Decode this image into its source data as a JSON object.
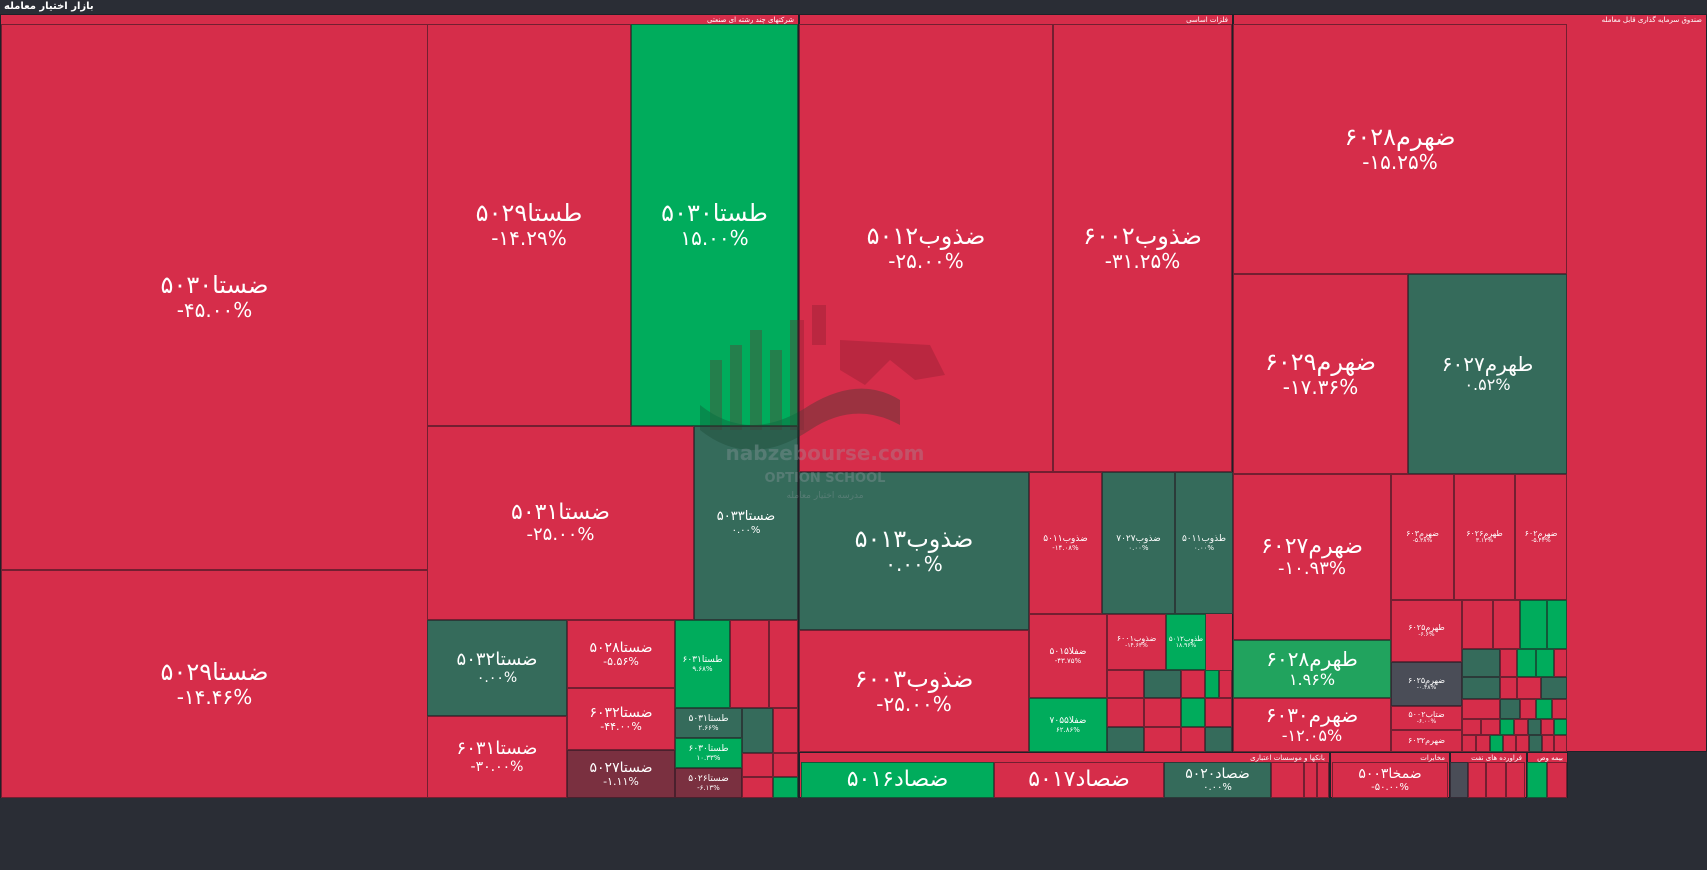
{
  "app": {
    "title": "بازار اختیار معامله"
  },
  "colors": {
    "red": "#d62d4a",
    "dark_red": "#7a3040",
    "dark_green": "#356b5b",
    "green": "#00ac5c",
    "mid_green": "#21a35e",
    "neutral": "#4a4d57",
    "background": "#2a2d35"
  },
  "watermark": {
    "logo": "nabzebourse-logo-icon",
    "site": "nabzebourse.com",
    "school": "OPTION SCHOOL",
    "tagline": "مدرسه اختیار معامله"
  },
  "chart_data": {
    "type": "treemap",
    "title": "بازار اختیار معامله",
    "value_unit": "%",
    "sectors": [
      {
        "name": "شرکتهای چند رشته ای صنعتی",
        "items": [
          {
            "symbol": "ضستا۵۰۳۰",
            "change": "-۴۵.۰۰%",
            "value": -45.0
          },
          {
            "symbol": "ضستا۵۰۲۹",
            "change": "-۱۴.۴۶%",
            "value": -14.46
          },
          {
            "symbol": "طستا۵۰۲۹",
            "change": "-۱۴.۲۹%",
            "value": -14.29
          },
          {
            "symbol": "طستا۵۰۳۰",
            "change": "۱۵.۰۰%",
            "value": 15.0
          },
          {
            "symbol": "ضستا۵۰۳۱",
            "change": "-۲۵.۰۰%",
            "value": -25.0
          },
          {
            "symbol": "ضستا۵۰۳۳",
            "change": "۰.۰۰%",
            "value": 0.0
          },
          {
            "symbol": "ضستا۵۰۳۲",
            "change": "۰.۰۰%",
            "value": 0.0
          },
          {
            "symbol": "ضستا۶۰۳۱",
            "change": "-۳۰.۰۰%",
            "value": -30.0
          },
          {
            "symbol": "ضستا۵۰۲۸",
            "change": "-۵.۵۶%",
            "value": -5.56
          },
          {
            "symbol": "ضستا۶۰۳۲",
            "change": "-۴۴.۰۰%",
            "value": -44.0
          },
          {
            "symbol": "ضستا۵۰۲۷",
            "change": "-۱.۱۱%",
            "value": -1.11
          },
          {
            "symbol": "طستا۶۰۳۱",
            "change": "۹.۶۸%",
            "value": 9.68
          },
          {
            "symbol": "طستا۵۰۳۱",
            "change": "۲.۶۶%",
            "value": 2.66
          },
          {
            "symbol": "طستا۶۰۳۰",
            "change": "۱۰.۳۳%",
            "value": 10.33
          },
          {
            "symbol": "ضستا۵۰۲۶",
            "change": "-۶.۱۳%",
            "value": -6.13
          }
        ]
      },
      {
        "name": "فلزات اساسی",
        "items": [
          {
            "symbol": "ضذوب۵۰۱۲",
            "change": "-۲۵.۰۰%",
            "value": -25.0
          },
          {
            "symbol": "ضذوب۶۰۰۲",
            "change": "-۳۱.۲۵%",
            "value": -31.25
          },
          {
            "symbol": "ضذوب۵۰۱۳",
            "change": "۰.۰۰%",
            "value": 0.0
          },
          {
            "symbol": "ضذوب۶۰۰۳",
            "change": "-۲۵.۰۰%",
            "value": -25.0
          },
          {
            "symbol": "ضذوب۵۰۱۱",
            "change": "-۱۴.۰۸%",
            "value": -14.08
          },
          {
            "symbol": "ضذوب۷۰۲۷",
            "change": "۰.۰۰%",
            "value": 0.0
          },
          {
            "symbol": "طذوب۵۰۱۱",
            "change": "۰.۰۰%",
            "value": 0.0
          },
          {
            "symbol": "ضفلا۵۰۱۵",
            "change": "-۴۳.۷۵%",
            "value": -43.75
          },
          {
            "symbol": "ضذوب۶۰۰۱",
            "change": "-۱۴.۶۳%",
            "value": -14.63
          },
          {
            "symbol": "طذوب۵۰۱۲",
            "change": "۱۸.۹۶%",
            "value": 18.96
          },
          {
            "symbol": "ضفلا۷۰۵۵",
            "change": "۶۲.۸۶%",
            "value": 62.86
          }
        ]
      },
      {
        "name": "صندوق سرمایه گذاری قابل معامله",
        "items": [
          {
            "symbol": "ضهرم۶۰۲۸",
            "change": "-۱۵.۲۵%",
            "value": -15.25
          },
          {
            "symbol": "ضهرم۶۰۲۹",
            "change": "-۱۷.۳۶%",
            "value": -17.36
          },
          {
            "symbol": "طهرم۶۰۲۷",
            "change": "۰.۵۲%",
            "value": 0.52
          },
          {
            "symbol": "ضهرم۶۰۲۷",
            "change": "-۱۰.۹۳%",
            "value": -10.93
          },
          {
            "symbol": "ضهرم۶۰۳",
            "change": "-۵.۳۸%",
            "value": -5.38
          },
          {
            "symbol": "طهرم۶۰۲۶",
            "change": "۳.۱۳%",
            "value": 3.13
          },
          {
            "symbol": "ضهرم۶۰۲",
            "change": "-۵.۴۴%",
            "value": -5.44
          },
          {
            "symbol": "طهرم۶۰۲۸",
            "change": "۱.۹۶%",
            "value": 1.96
          },
          {
            "symbol": "طهرم۶۰۲۵",
            "change": "-۶.۶%",
            "value": -6.6
          },
          {
            "symbol": "ضهرم۶۰۲۵",
            "change": "-۰.۴۸%",
            "value": -0.48
          },
          {
            "symbol": "ضهرم۶۰۳۰",
            "change": "-۱۲.۰۵%",
            "value": -12.05
          },
          {
            "symbol": "ضتاب۵۰۰۲",
            "change": "-۶.۰۰%",
            "value": -6.0
          },
          {
            "symbol": "ضهرم۶۰۳۲",
            "change": "",
            "value": null
          }
        ]
      },
      {
        "name": "بانکها و موسسات اعتباری",
        "items": [
          {
            "symbol": "ضصاد۵۰۱۶",
            "change": "",
            "value": null
          },
          {
            "symbol": "ضصاد۵۰۱۷",
            "change": "",
            "value": null
          },
          {
            "symbol": "ضصاد۵۰۲۰",
            "change": "۰.۰۰%",
            "value": 0.0
          }
        ]
      },
      {
        "name": "مخابرات",
        "items": [
          {
            "symbol": "ضمخا۵۰۰۳",
            "change": "-۵۰.۰۰%",
            "value": -50.0
          }
        ]
      },
      {
        "name": "فراورده های نفت",
        "items": []
      },
      {
        "name": "بیمه وص",
        "items": []
      }
    ]
  }
}
